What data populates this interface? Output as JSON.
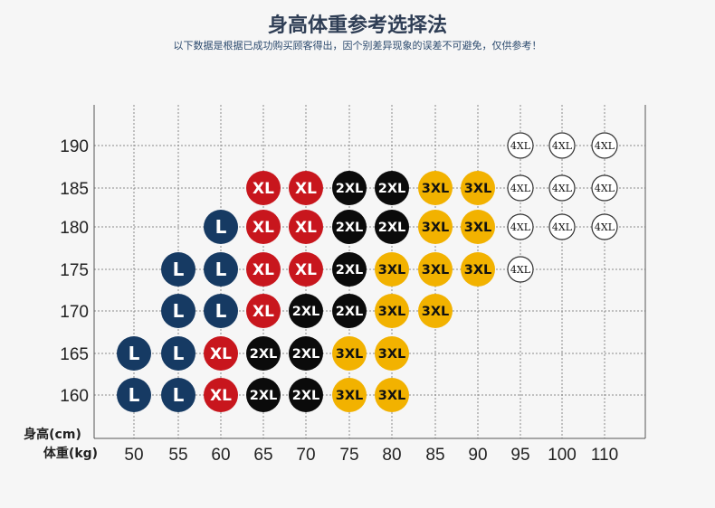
{
  "header": {
    "title": "身高体重参考选择法",
    "subtitle": "以下数据是根据已成功购买顾客得出，因个别差异现象的误差不可避免，仅供参考！"
  },
  "colors": {
    "L": "#163a63",
    "XL": "#c8161d",
    "2XL": "#0b0b0b",
    "3XL": "#f2b200",
    "4XL": "#ffffff"
  },
  "chart_data": {
    "type": "scatter",
    "xlabel": "体重(kg)",
    "ylabel": "身高(cm)",
    "x_ticks": [
      "50",
      "55",
      "60",
      "65",
      "70",
      "75",
      "80",
      "85",
      "90",
      "95",
      "100",
      "110"
    ],
    "y_ticks": [
      "160",
      "165",
      "170",
      "175",
      "180",
      "185",
      "190"
    ],
    "grid": true,
    "points": [
      {
        "x": "50",
        "y": "160",
        "size": "L"
      },
      {
        "x": "55",
        "y": "160",
        "size": "L"
      },
      {
        "x": "60",
        "y": "160",
        "size": "XL"
      },
      {
        "x": "65",
        "y": "160",
        "size": "2XL"
      },
      {
        "x": "70",
        "y": "160",
        "size": "2XL"
      },
      {
        "x": "75",
        "y": "160",
        "size": "3XL"
      },
      {
        "x": "80",
        "y": "160",
        "size": "3XL"
      },
      {
        "x": "50",
        "y": "165",
        "size": "L"
      },
      {
        "x": "55",
        "y": "165",
        "size": "L"
      },
      {
        "x": "60",
        "y": "165",
        "size": "XL"
      },
      {
        "x": "65",
        "y": "165",
        "size": "2XL"
      },
      {
        "x": "70",
        "y": "165",
        "size": "2XL"
      },
      {
        "x": "75",
        "y": "165",
        "size": "3XL"
      },
      {
        "x": "80",
        "y": "165",
        "size": "3XL"
      },
      {
        "x": "55",
        "y": "170",
        "size": "L"
      },
      {
        "x": "60",
        "y": "170",
        "size": "L"
      },
      {
        "x": "65",
        "y": "170",
        "size": "XL"
      },
      {
        "x": "70",
        "y": "170",
        "size": "2XL"
      },
      {
        "x": "75",
        "y": "170",
        "size": "2XL"
      },
      {
        "x": "80",
        "y": "170",
        "size": "3XL"
      },
      {
        "x": "85",
        "y": "170",
        "size": "3XL"
      },
      {
        "x": "55",
        "y": "175",
        "size": "L"
      },
      {
        "x": "60",
        "y": "175",
        "size": "L"
      },
      {
        "x": "65",
        "y": "175",
        "size": "XL"
      },
      {
        "x": "70",
        "y": "175",
        "size": "XL"
      },
      {
        "x": "75",
        "y": "175",
        "size": "2XL"
      },
      {
        "x": "80",
        "y": "175",
        "size": "3XL"
      },
      {
        "x": "85",
        "y": "175",
        "size": "3XL"
      },
      {
        "x": "90",
        "y": "175",
        "size": "3XL"
      },
      {
        "x": "95",
        "y": "175",
        "size": "4XL"
      },
      {
        "x": "60",
        "y": "180",
        "size": "L"
      },
      {
        "x": "65",
        "y": "180",
        "size": "XL"
      },
      {
        "x": "70",
        "y": "180",
        "size": "XL"
      },
      {
        "x": "75",
        "y": "180",
        "size": "2XL"
      },
      {
        "x": "80",
        "y": "180",
        "size": "2XL"
      },
      {
        "x": "85",
        "y": "180",
        "size": "3XL"
      },
      {
        "x": "90",
        "y": "180",
        "size": "3XL"
      },
      {
        "x": "95",
        "y": "180",
        "size": "4XL"
      },
      {
        "x": "100",
        "y": "180",
        "size": "4XL"
      },
      {
        "x": "110",
        "y": "180",
        "size": "4XL"
      },
      {
        "x": "65",
        "y": "185",
        "size": "XL"
      },
      {
        "x": "70",
        "y": "185",
        "size": "XL"
      },
      {
        "x": "75",
        "y": "185",
        "size": "2XL"
      },
      {
        "x": "80",
        "y": "185",
        "size": "2XL"
      },
      {
        "x": "85",
        "y": "185",
        "size": "3XL"
      },
      {
        "x": "90",
        "y": "185",
        "size": "3XL"
      },
      {
        "x": "95",
        "y": "185",
        "size": "4XL"
      },
      {
        "x": "100",
        "y": "185",
        "size": "4XL"
      },
      {
        "x": "110",
        "y": "185",
        "size": "4XL"
      },
      {
        "x": "95",
        "y": "190",
        "size": "4XL"
      },
      {
        "x": "100",
        "y": "190",
        "size": "4XL"
      },
      {
        "x": "110",
        "y": "190",
        "size": "4XL"
      }
    ]
  }
}
